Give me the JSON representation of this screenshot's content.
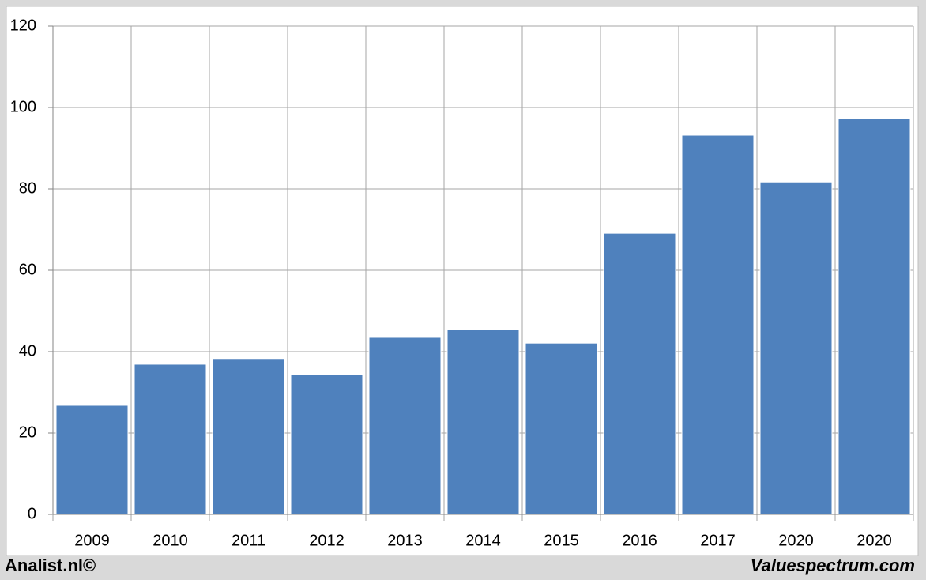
{
  "chart_data": {
    "type": "bar",
    "categories": [
      "2009",
      "2010",
      "2011",
      "2012",
      "2013",
      "2014",
      "2015",
      "2016",
      "2017",
      "2020",
      "2020"
    ],
    "values": [
      26.8,
      36.9,
      38.3,
      34.4,
      43.5,
      45.4,
      42.1,
      69.1,
      93.2,
      81.7,
      97.3
    ],
    "color": "#4f81bd",
    "ylim": [
      0,
      120
    ],
    "yticks": [
      0,
      20,
      40,
      60,
      80,
      100,
      120
    ],
    "grid": true
  },
  "footer": {
    "left": "Analist.nl©",
    "right": "Valuespectrum.com"
  }
}
